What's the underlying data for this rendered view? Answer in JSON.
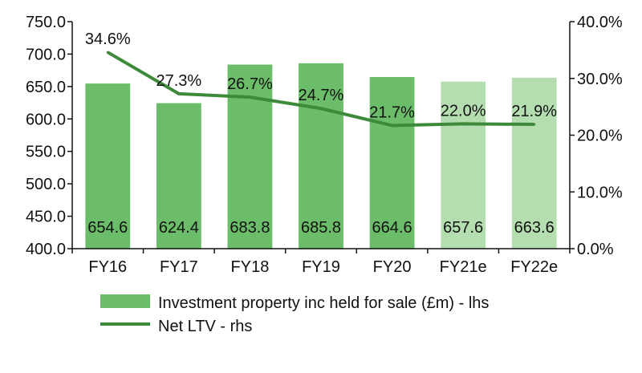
{
  "chart_data": {
    "type": "bar",
    "categories": [
      "FY16",
      "FY17",
      "FY18",
      "FY19",
      "FY20",
      "FY21e",
      "FY22e"
    ],
    "y_left": {
      "min": 400,
      "max": 750,
      "step": 50,
      "tick_labels": [
        "400.0",
        "450.0",
        "500.0",
        "550.0",
        "600.0",
        "650.0",
        "700.0",
        "750.0"
      ]
    },
    "y_right": {
      "min": 0,
      "max": 40,
      "step": 10,
      "tick_labels": [
        "0.0%",
        "10.0%",
        "20.0%",
        "30.0%",
        "40.0%"
      ]
    },
    "grid": false,
    "legend_position": "bottom",
    "series": [
      {
        "name": "Investment property inc held for sale (£m) - lhs",
        "type": "bar",
        "axis": "left",
        "values": [
          654.6,
          624.4,
          683.8,
          685.8,
          664.6,
          657.6,
          663.6
        ],
        "labels": [
          "654.6",
          "624.4",
          "683.8",
          "685.8",
          "664.6",
          "657.6",
          "663.6"
        ],
        "colors": [
          "#6cbd6a",
          "#6cbd6a",
          "#6cbd6a",
          "#6cbd6a",
          "#6cbd6a",
          "#b5deb0",
          "#b5deb0"
        ]
      },
      {
        "name": "Net LTV - rhs",
        "type": "line",
        "axis": "right",
        "values": [
          34.6,
          27.3,
          26.7,
          24.7,
          21.7,
          22.0,
          21.9
        ],
        "labels": [
          "34.6%",
          "27.3%",
          "26.7%",
          "24.7%",
          "21.7%",
          "22.0%",
          "21.9%"
        ],
        "color": "#3c8a3a"
      }
    ]
  }
}
